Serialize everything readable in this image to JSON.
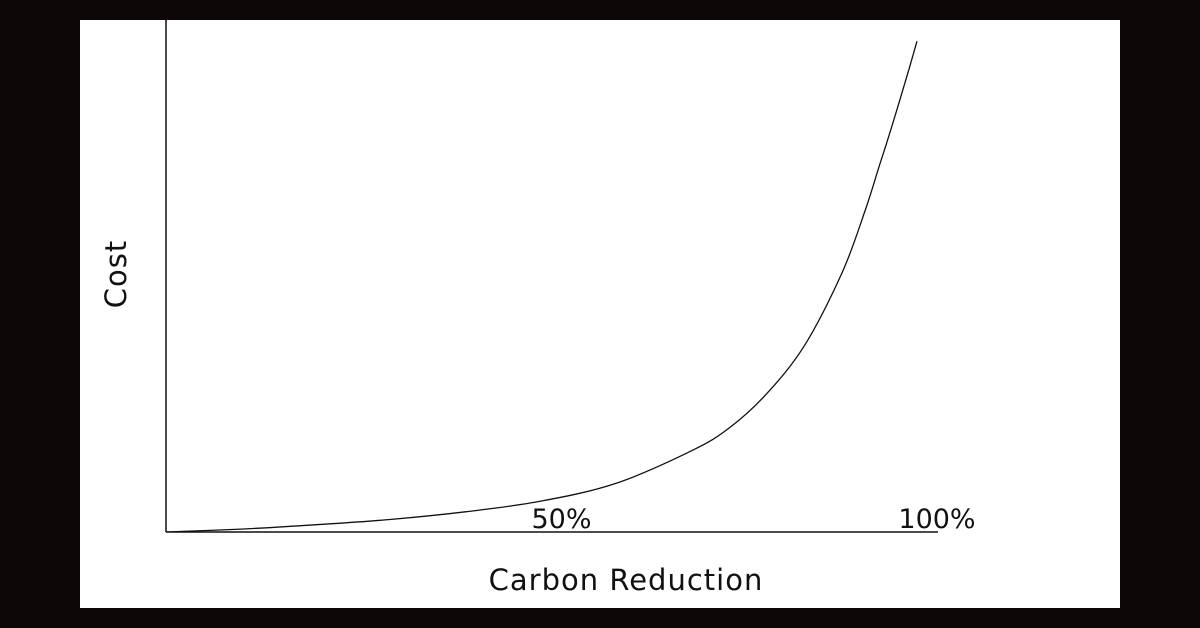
{
  "chart_data": {
    "type": "line",
    "title": "",
    "xlabel": "Carbon Reduction",
    "ylabel": "Cost",
    "x_tick_labels": [
      "50%",
      "100%"
    ],
    "x_ticks": [
      50,
      100
    ],
    "xlim": [
      0,
      100
    ],
    "ylim": [
      0,
      100
    ],
    "grid": false,
    "legend": "none",
    "series": [
      {
        "x": [
          0,
          10,
          20,
          30,
          40,
          50,
          60,
          70,
          75,
          80,
          85,
          90,
          93,
          95,
          97,
          99,
          100
        ],
        "y": [
          0,
          0.6,
          1.5,
          2.6,
          4.2,
          6.4,
          10.1,
          16.8,
          21.5,
          28.6,
          38.5,
          53.5,
          66.0,
          75.7,
          85.6,
          96.0,
          101.4
        ]
      }
    ]
  },
  "colors": {
    "background": "#0d0707",
    "plot_area": "#ffffff",
    "line": "#111111"
  }
}
